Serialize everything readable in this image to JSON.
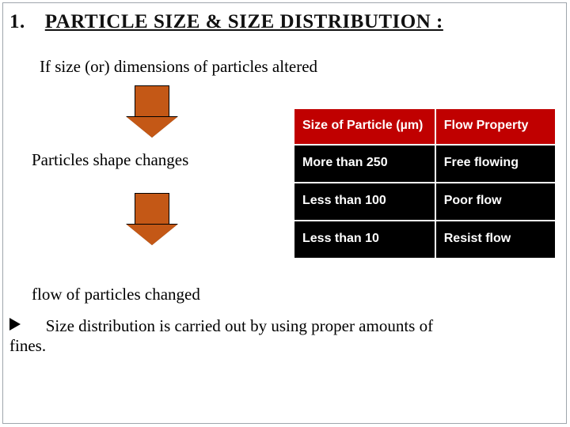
{
  "title": {
    "number": "1.",
    "text": "PARTICLE  SIZE  &  SIZE DISTRIBUTION :"
  },
  "intro": "If size (or) dimensions of particles altered",
  "steps": {
    "shape": "Particles  shape  changes",
    "flow": "flow of particles changed"
  },
  "arrow": {
    "fill": "#c45816",
    "border": "#000000"
  },
  "table": {
    "header_bg": "#c00000",
    "header_fg": "#ffffff",
    "cell_bg": "#000000",
    "cell_fg": "#ffffff",
    "columns": [
      "Size of Particle (µm)",
      "Flow  Property"
    ],
    "rows": [
      [
        "More than 250",
        "Free flowing"
      ],
      [
        "Less than 100",
        "Poor flow"
      ],
      [
        "Less than 10",
        "Resist flow"
      ]
    ]
  },
  "bullet": {
    "leadspace": "   ",
    "line1": "Size distribution is carried out by using proper amounts of",
    "line2": "fines."
  }
}
